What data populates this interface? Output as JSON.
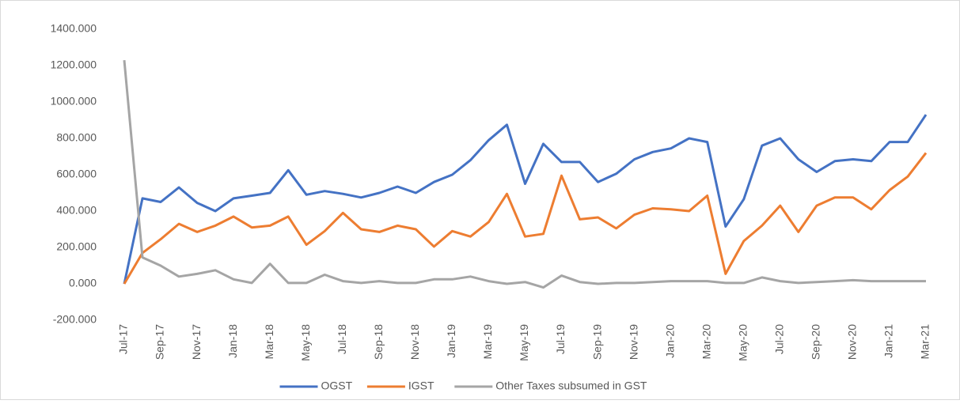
{
  "chart_data": {
    "type": "line",
    "categories": [
      "Jul-17",
      null,
      "Sep-17",
      null,
      "Nov-17",
      null,
      "Jan-18",
      null,
      "Mar-18",
      null,
      "May-18",
      null,
      "Jul-18",
      null,
      "Sep-18",
      null,
      "Nov-18",
      null,
      "Jan-19",
      null,
      "Mar-19",
      null,
      "May-19",
      null,
      "Jul-19",
      null,
      "Sep-19",
      null,
      "Nov-19",
      null,
      "Jan-20",
      null,
      "Mar-20",
      null,
      "May-20",
      null,
      "Jul-20",
      null,
      "Sep-20",
      null,
      "Nov-20",
      null,
      "Jan-21",
      null,
      "Mar-21"
    ],
    "series": [
      {
        "name": "OGST",
        "color": "#4472c4",
        "values": [
          0,
          470,
          450,
          530,
          445,
          400,
          470,
          485,
          500,
          625,
          490,
          510,
          495,
          475,
          500,
          535,
          500,
          560,
          600,
          680,
          790,
          875,
          550,
          770,
          670,
          670,
          560,
          605,
          685,
          725,
          745,
          800,
          780,
          315,
          465,
          760,
          800,
          685,
          615,
          675,
          685,
          675,
          780,
          780,
          930
        ]
      },
      {
        "name": "IGST",
        "color": "#ed7d31",
        "values": [
          0,
          170,
          245,
          330,
          285,
          320,
          370,
          310,
          320,
          370,
          215,
          290,
          390,
          300,
          285,
          320,
          300,
          205,
          290,
          260,
          340,
          495,
          260,
          275,
          595,
          355,
          365,
          305,
          380,
          415,
          410,
          400,
          485,
          55,
          235,
          320,
          430,
          285,
          430,
          475,
          475,
          410,
          515,
          590,
          720
        ]
      },
      {
        "name": "Other Taxes subsumed in GST",
        "color": "#a5a5a5",
        "values": [
          1230,
          145,
          100,
          40,
          55,
          75,
          25,
          5,
          110,
          5,
          5,
          50,
          15,
          5,
          15,
          5,
          5,
          25,
          25,
          40,
          15,
          0,
          10,
          -20,
          45,
          10,
          0,
          5,
          5,
          10,
          15,
          15,
          15,
          5,
          5,
          35,
          15,
          5,
          10,
          15,
          20,
          15,
          15,
          15,
          15
        ]
      }
    ],
    "ylim": [
      -200,
      1400
    ],
    "yticks": [
      {
        "value": -200,
        "label": "-200.000"
      },
      {
        "value": 0,
        "label": "0.000"
      },
      {
        "value": 200,
        "label": "200.000"
      },
      {
        "value": 400,
        "label": "400.000"
      },
      {
        "value": 600,
        "label": "600.000"
      },
      {
        "value": 800,
        "label": "800.000"
      },
      {
        "value": 1000,
        "label": "1000.000"
      },
      {
        "value": 1200,
        "label": "1200.000"
      },
      {
        "value": 1400,
        "label": "1400.000"
      }
    ],
    "grid": false,
    "legend": "bottom"
  }
}
